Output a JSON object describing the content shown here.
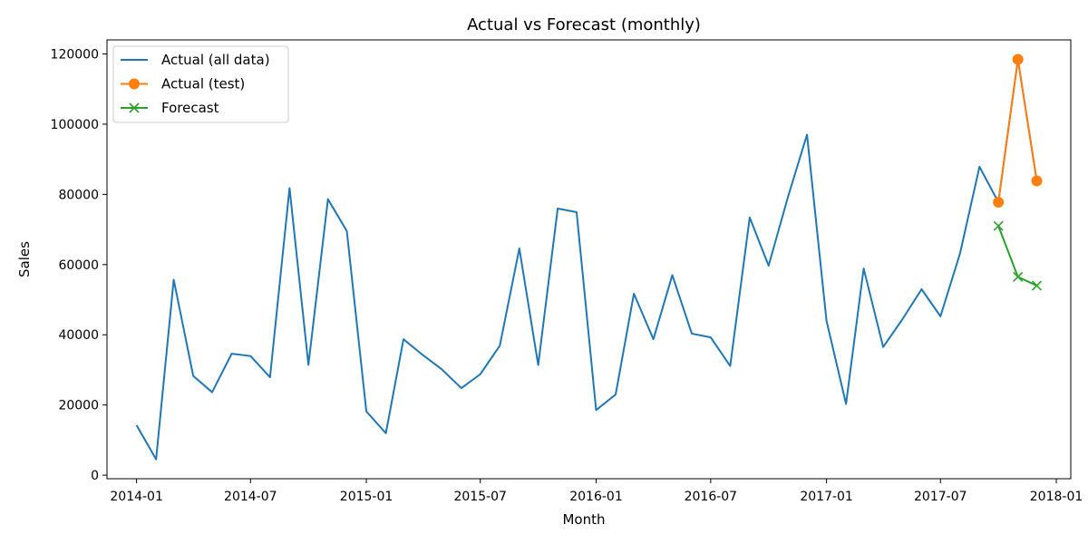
{
  "chart_data": {
    "type": "line",
    "title": "Actual vs Forecast (monthly)",
    "xlabel": "Month",
    "ylabel": "Sales",
    "x_axis": {
      "type": "date",
      "range": [
        "2013-11-15",
        "2018-01-24"
      ],
      "ticks": [
        "2014-01",
        "2014-07",
        "2015-01",
        "2015-07",
        "2016-01",
        "2016-07",
        "2017-01",
        "2017-07",
        "2018-01"
      ]
    },
    "y_axis": {
      "range": [
        -1000,
        124000
      ],
      "ticks": [
        0,
        20000,
        40000,
        60000,
        80000,
        100000,
        120000
      ],
      "tick_labels": [
        "0",
        "20000",
        "40000",
        "60000",
        "80000",
        "100000",
        "120000"
      ]
    },
    "grid": false,
    "legend": {
      "position": "top-left"
    },
    "series": [
      {
        "name": "Actual (all data)",
        "color": "#1f77b4",
        "marker": "none",
        "x": [
          "2014-01",
          "2014-02",
          "2014-03",
          "2014-04",
          "2014-05",
          "2014-06",
          "2014-07",
          "2014-08",
          "2014-09",
          "2014-10",
          "2014-11",
          "2014-12",
          "2015-01",
          "2015-02",
          "2015-03",
          "2015-04",
          "2015-05",
          "2015-06",
          "2015-07",
          "2015-08",
          "2015-09",
          "2015-10",
          "2015-11",
          "2015-12",
          "2016-01",
          "2016-02",
          "2016-03",
          "2016-04",
          "2016-05",
          "2016-06",
          "2016-07",
          "2016-08",
          "2016-09",
          "2016-10",
          "2016-11",
          "2016-12",
          "2017-01",
          "2017-02",
          "2017-03",
          "2017-04",
          "2017-05",
          "2017-06",
          "2017-07",
          "2017-08",
          "2017-09",
          "2017-10",
          "2017-11",
          "2017-12"
        ],
        "values": [
          14237,
          4520,
          55691,
          28295,
          23648,
          34595,
          33946,
          27909,
          81777,
          31453,
          78628,
          69546,
          18174,
          11951,
          38726,
          34195,
          30132,
          24797,
          28765,
          36898,
          64596,
          31404,
          75973,
          74920,
          18542,
          22979,
          51716,
          38750,
          56988,
          40344,
          39262,
          31115,
          73410,
          59687,
          79412,
          96999,
          43971,
          20301,
          58872,
          36522,
          44261,
          52982,
          45264,
          63121,
          87867,
          77777,
          118448,
          83829
        ]
      },
      {
        "name": "Actual (test)",
        "color": "#ff7f0e",
        "marker": "circle",
        "x": [
          "2017-10",
          "2017-11",
          "2017-12"
        ],
        "values": [
          77777,
          118448,
          83829
        ]
      },
      {
        "name": "Forecast",
        "color": "#2ca02c",
        "marker": "x",
        "x": [
          "2017-10",
          "2017-11",
          "2017-12"
        ],
        "values": [
          71000,
          56500,
          54000
        ]
      }
    ]
  }
}
